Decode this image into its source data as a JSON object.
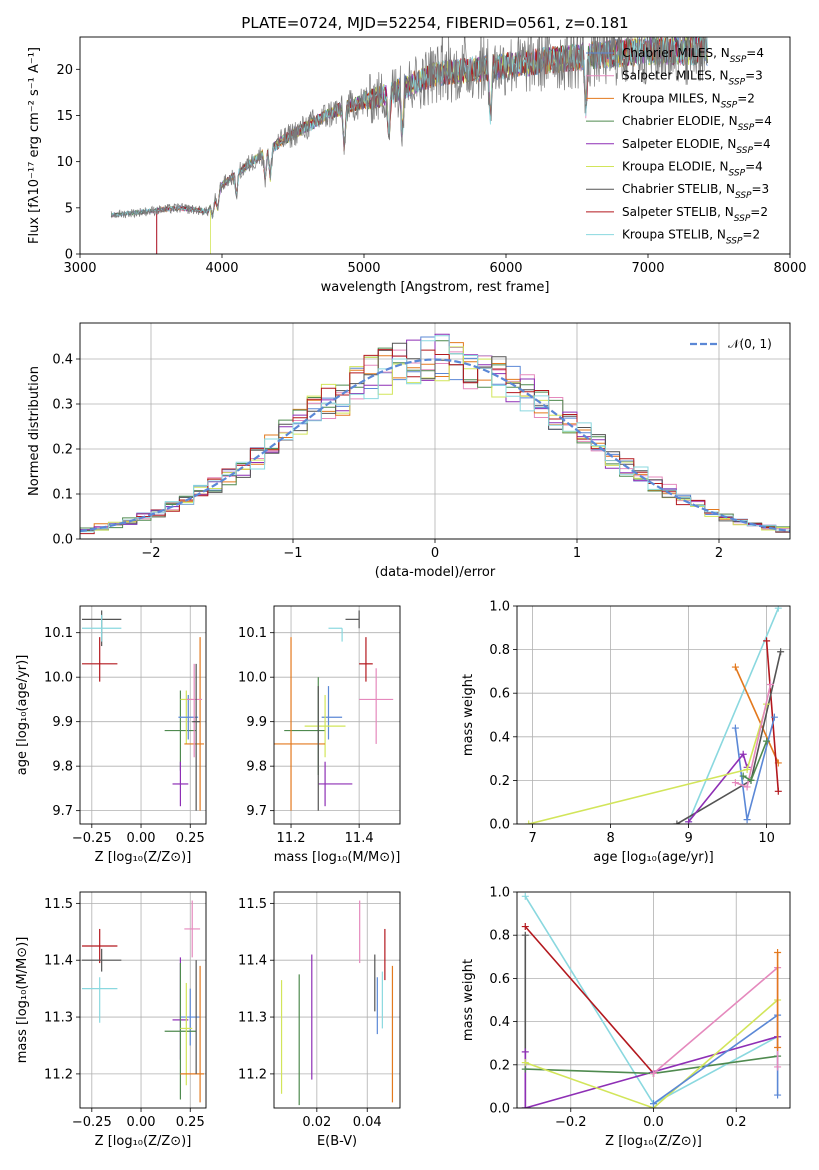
{
  "title": "PLATE=0724, MJD=52254, FIBERID=0561, z=0.181",
  "colors": {
    "Chabrier MILES": "#5b88d6",
    "Salpeter MILES": "#e589bd",
    "Kroupa MILES": "#e3791e",
    "Chabrier ELODIE": "#4f8a4f",
    "Salpeter ELODIE": "#8e2fb5",
    "Kroupa ELODIE": "#d2e55a",
    "Chabrier STELIB": "#545454",
    "Salpeter STELIB": "#b3181e",
    "Kroupa STELIB": "#8ad8df"
  },
  "legend_spectrum": [
    {
      "label": "Chabrier MILES, N",
      "sub": "SSP",
      "suffix": "=4",
      "key": "Chabrier MILES"
    },
    {
      "label": "Salpeter MILES, N",
      "sub": "SSP",
      "suffix": "=3",
      "key": "Salpeter MILES"
    },
    {
      "label": "Kroupa MILES, N",
      "sub": "SSP",
      "suffix": "=2",
      "key": "Kroupa MILES"
    },
    {
      "label": "Chabrier ELODIE, N",
      "sub": "SSP",
      "suffix": "=4",
      "key": "Chabrier ELODIE"
    },
    {
      "label": "Salpeter ELODIE, N",
      "sub": "SSP",
      "suffix": "=4",
      "key": "Salpeter ELODIE"
    },
    {
      "label": "Kroupa ELODIE, N",
      "sub": "SSP",
      "suffix": "=4",
      "key": "Kroupa ELODIE"
    },
    {
      "label": "Chabrier STELIB, N",
      "sub": "SSP",
      "suffix": "=3",
      "key": "Chabrier STELIB"
    },
    {
      "label": "Salpeter STELIB, N",
      "sub": "SSP",
      "suffix": "=2",
      "key": "Salpeter STELIB"
    },
    {
      "label": "Kroupa STELIB, N",
      "sub": "SSP",
      "suffix": "=2",
      "key": "Kroupa STELIB"
    }
  ],
  "chart_data": [
    {
      "id": "spectrum",
      "type": "line",
      "xlabel": "wavelength [Angstrom, rest frame]",
      "ylabel": "Flux [fλ10⁻¹⁷ erg cm⁻² s⁻¹ A⁻¹]",
      "xlim": [
        3000,
        8000
      ],
      "ylim": [
        0,
        23.5
      ],
      "xticks": [
        3000,
        4000,
        5000,
        6000,
        7000,
        8000
      ],
      "yticks": [
        0,
        5,
        10,
        15,
        20
      ],
      "legend_position": "right",
      "data_range_x": [
        3220,
        7420
      ],
      "continuum": [
        [
          3220,
          4.2
        ],
        [
          3700,
          5.0
        ],
        [
          3900,
          4.6
        ],
        [
          4000,
          7.5
        ],
        [
          4300,
          11.0
        ],
        [
          4500,
          13.0
        ],
        [
          4800,
          15.5
        ],
        [
          5200,
          17.5
        ],
        [
          5500,
          19.5
        ],
        [
          5800,
          20.0
        ],
        [
          6200,
          20.8
        ],
        [
          6600,
          21.5
        ],
        [
          7000,
          22.0
        ],
        [
          7420,
          22.0
        ]
      ],
      "series_start_x": {
        "Salpeter STELIB": 3540,
        "Kroupa ELODIE": 3920,
        "Kroupa MILES": 3540,
        "Salpeter ELODIE": 3540
      }
    },
    {
      "id": "residuals",
      "type": "histogram",
      "xlabel": "(data-model)/error",
      "ylabel": "Normed distribution",
      "xlim": [
        -2.5,
        2.5
      ],
      "ylim": [
        0,
        0.48
      ],
      "xticks": [
        -2,
        -1,
        0,
        1,
        2
      ],
      "yticks": [
        0.0,
        0.1,
        0.2,
        0.3,
        0.4
      ],
      "grid": true,
      "legend": [
        {
          "label": "𝒩(0, 1)",
          "style": "dashed",
          "color": "#5b88d6"
        }
      ],
      "legend_position": "top-right",
      "bins_start": -2.5,
      "bin_width": 0.1,
      "n_bins": 50
    },
    {
      "id": "age_vs_Z",
      "type": "errorbar",
      "xlabel": "Z [log₁₀(Z/Z⊙)]",
      "ylabel": "age  [log₁₀(age/yr)]",
      "xlim": [
        -0.31,
        0.33
      ],
      "ylim": [
        9.67,
        10.16
      ],
      "xticks": [
        -0.25,
        0.0,
        0.25
      ],
      "yticks": [
        9.7,
        9.8,
        9.9,
        10.0,
        10.1
      ],
      "grid": true,
      "points": [
        {
          "key": "Chabrier STELIB",
          "x": -0.2,
          "y": 10.13,
          "xerr": [
            0.1,
            0.1
          ],
          "yerr": [
            0.06,
            0.02
          ]
        },
        {
          "key": "Kroupa STELIB",
          "x": -0.2,
          "y": 10.11,
          "xerr": [
            0.1,
            0.1
          ],
          "yerr": [
            0.03,
            0.03
          ]
        },
        {
          "key": "Salpeter STELIB",
          "x": -0.21,
          "y": 10.03,
          "xerr": [
            0.09,
            0.09
          ],
          "yerr": [
            0.04,
            0.06
          ]
        },
        {
          "key": "Chabrier ELODIE",
          "x": 0.2,
          "y": 9.88,
          "xerr": [
            0.08,
            0.08
          ],
          "yerr": [
            0.09,
            0.09
          ]
        },
        {
          "key": "Salpeter ELODIE",
          "x": 0.2,
          "y": 9.76,
          "xerr": [
            0.04,
            0.04
          ],
          "yerr": [
            0.05,
            0.05
          ]
        },
        {
          "key": "Kroupa ELODIE",
          "x": 0.23,
          "y": 9.95,
          "xerr": [
            0.03,
            0.03
          ],
          "yerr": [
            0.1,
            0.02
          ]
        },
        {
          "key": "Chabrier MILES",
          "x": 0.24,
          "y": 9.91,
          "xerr": [
            0.05,
            0.05
          ],
          "yerr": [
            0.05,
            0.05
          ]
        },
        {
          "key": "Kroupa MILES",
          "x": 0.3,
          "y": 9.85,
          "xerr": [
            0.08,
            0.02
          ],
          "yerr": [
            0.15,
            0.24
          ]
        },
        {
          "key": "Salpeter MILES",
          "x": 0.27,
          "y": 9.95,
          "xerr": [
            0.04,
            0.04
          ],
          "yerr": [
            0.13,
            0.08
          ]
        },
        {
          "key": "Chabrier STELIB",
          "x": 0.28,
          "y": 9.9,
          "xerr": [
            0.02,
            0.02
          ],
          "yerr": [
            0.2,
            0.13
          ]
        }
      ]
    },
    {
      "id": "age_vs_mass",
      "type": "errorbar",
      "xlabel": "mass [log₁₀(M/M⊙)]",
      "xlim": [
        11.15,
        11.52
      ],
      "ylim": [
        9.67,
        10.16
      ],
      "xticks": [
        11.2,
        11.4
      ],
      "yticks": [
        9.7,
        9.8,
        9.9,
        10.0,
        10.1
      ],
      "grid": true,
      "points": [
        {
          "key": "Chabrier STELIB",
          "x": 11.4,
          "y": 10.13,
          "xerr": [
            0.04,
            0.0
          ],
          "yerr": [
            0.02,
            0.02
          ]
        },
        {
          "key": "Kroupa STELIB",
          "x": 11.35,
          "y": 10.11,
          "xerr": [
            0.04,
            0.0
          ],
          "yerr": [
            0.03,
            0.0
          ]
        },
        {
          "key": "Salpeter STELIB",
          "x": 11.42,
          "y": 10.03,
          "xerr": [
            0.02,
            0.02
          ],
          "yerr": [
            0.04,
            0.06
          ]
        },
        {
          "key": "Chabrier MILES",
          "x": 11.31,
          "y": 9.91,
          "xerr": [
            0.02,
            0.04
          ],
          "yerr": [
            0.05,
            0.07
          ]
        },
        {
          "key": "Chabrier ELODIE",
          "x": 11.28,
          "y": 9.88,
          "xerr": [
            0.1,
            0.02
          ],
          "yerr": [
            0.1,
            0.12
          ]
        },
        {
          "key": "Kroupa ELODIE",
          "x": 11.3,
          "y": 9.89,
          "xerr": [
            0.06,
            0.06
          ],
          "yerr": [
            0.07,
            0.07
          ]
        },
        {
          "key": "Kroupa MILES",
          "x": 11.2,
          "y": 9.85,
          "xerr": [
            0.05,
            0.1
          ],
          "yerr": [
            0.15,
            0.24
          ]
        },
        {
          "key": "Salpeter ELODIE",
          "x": 11.3,
          "y": 9.76,
          "xerr": [
            0.02,
            0.08
          ],
          "yerr": [
            0.05,
            0.05
          ]
        },
        {
          "key": "Salpeter MILES",
          "x": 11.45,
          "y": 9.95,
          "xerr": [
            0.05,
            0.05
          ],
          "yerr": [
            0.1,
            0.07
          ]
        },
        {
          "key": "Chabrier STELIB",
          "x": 11.28,
          "y": 9.9,
          "xerr": [
            0.0,
            0.0
          ],
          "yerr": [
            0.2,
            0.08
          ]
        }
      ]
    },
    {
      "id": "weight_vs_age",
      "type": "line",
      "xlabel": "age  [log₁₀(age/yr)]",
      "ylabel": "mass weight",
      "xlim": [
        6.8,
        10.3
      ],
      "ylim": [
        0,
        1
      ],
      "xticks": [
        7,
        8,
        9,
        10
      ],
      "yticks": [
        0.0,
        0.2,
        0.4,
        0.6,
        0.8,
        1.0
      ],
      "grid": true,
      "series": [
        {
          "key": "Kroupa STELIB",
          "x": [
            9.0,
            10.15
          ],
          "y": [
            0.01,
            0.99
          ]
        },
        {
          "key": "Kroupa MILES",
          "x": [
            9.6,
            10.15
          ],
          "y": [
            0.72,
            0.28
          ]
        },
        {
          "key": "Salpeter STELIB",
          "x": [
            10.0,
            10.15
          ],
          "y": [
            0.84,
            0.15
          ]
        },
        {
          "key": "Chabrier STELIB",
          "x": [
            8.85,
            9.8,
            10.18
          ],
          "y": [
            0.0,
            0.2,
            0.79
          ]
        },
        {
          "key": "Chabrier MILES",
          "x": [
            9.6,
            9.75,
            10.1
          ],
          "y": [
            0.44,
            0.02,
            0.49
          ]
        },
        {
          "key": "Salpeter ELODIE",
          "x": [
            9.0,
            9.7,
            9.75
          ],
          "y": [
            0.01,
            0.32,
            0.26
          ]
        },
        {
          "key": "Kroupa ELODIE",
          "x": [
            6.95,
            9.75,
            10.0
          ],
          "y": [
            0.0,
            0.25,
            0.55
          ]
        },
        {
          "key": "Salpeter MILES",
          "x": [
            9.6,
            9.75,
            10.05
          ],
          "y": [
            0.19,
            0.17,
            0.64
          ]
        },
        {
          "key": "Chabrier ELODIE",
          "x": [
            9.7,
            9.8,
            10.0
          ],
          "y": [
            0.22,
            0.2,
            0.38
          ]
        }
      ]
    },
    {
      "id": "mass_vs_Z",
      "type": "errorbar",
      "xlabel": "Z [log₁₀(Z/Z⊙)]",
      "ylabel": "mass [log₁₀(M/M⊙)]",
      "xlim": [
        -0.31,
        0.33
      ],
      "ylim": [
        11.14,
        11.52
      ],
      "xticks": [
        -0.25,
        0.0,
        0.25
      ],
      "yticks": [
        11.2,
        11.3,
        11.4,
        11.5
      ],
      "grid": true,
      "points": [
        {
          "key": "Salpeter STELIB",
          "x": -0.21,
          "y": 11.425,
          "xerr": [
            0.09,
            0.09
          ],
          "yerr": [
            0.03,
            0.03
          ]
        },
        {
          "key": "Chabrier STELIB",
          "x": -0.2,
          "y": 11.4,
          "xerr": [
            0.1,
            0.1
          ],
          "yerr": [
            0.02,
            0.02
          ]
        },
        {
          "key": "Kroupa STELIB",
          "x": -0.21,
          "y": 11.35,
          "xerr": [
            0.09,
            0.09
          ],
          "yerr": [
            0.06,
            0.02
          ]
        },
        {
          "key": "Salpeter MILES",
          "x": 0.26,
          "y": 11.455,
          "xerr": [
            0.04,
            0.04
          ],
          "yerr": [
            0.05,
            0.05
          ]
        },
        {
          "key": "Chabrier MILES",
          "x": 0.25,
          "y": 11.3,
          "xerr": [
            0.05,
            0.05
          ],
          "yerr": [
            0.05,
            0.05
          ]
        },
        {
          "key": "Salpeter ELODIE",
          "x": 0.2,
          "y": 11.295,
          "xerr": [
            0.04,
            0.04
          ],
          "yerr": [
            0.07,
            0.11
          ]
        },
        {
          "key": "Chabrier ELODIE",
          "x": 0.2,
          "y": 11.275,
          "xerr": [
            0.08,
            0.08
          ],
          "yerr": [
            0.12,
            0.12
          ]
        },
        {
          "key": "Kroupa ELODIE",
          "x": 0.23,
          "y": 11.28,
          "xerr": [
            0.03,
            0.03
          ],
          "yerr": [
            0.1,
            0.08
          ]
        },
        {
          "key": "Kroupa MILES",
          "x": 0.3,
          "y": 11.2,
          "xerr": [
            0.1,
            0.02
          ],
          "yerr": [
            0.05,
            0.19
          ]
        },
        {
          "key": "Chabrier STELIB",
          "x": 0.28,
          "y": 11.3,
          "xerr": [
            0.0,
            0.0
          ],
          "yerr": [
            0.1,
            0.1
          ]
        }
      ]
    },
    {
      "id": "mass_vs_EBV",
      "type": "errorbar",
      "xlabel": "E(B-V)",
      "xlim": [
        0.003,
        0.053
      ],
      "ylim": [
        11.14,
        11.52
      ],
      "xticks": [
        0.02,
        0.04
      ],
      "yticks": [
        11.2,
        11.3,
        11.4,
        11.5
      ],
      "grid": true,
      "points": [
        {
          "key": "Kroupa ELODIE",
          "x": 0.006,
          "y": 11.265,
          "xerr": [
            0,
            0
          ],
          "yerr": [
            0.1,
            0.1
          ]
        },
        {
          "key": "Chabrier ELODIE",
          "x": 0.013,
          "y": 11.26,
          "xerr": [
            0,
            0
          ],
          "yerr": [
            0.115,
            0.115
          ]
        },
        {
          "key": "Salpeter ELODIE",
          "x": 0.018,
          "y": 11.3,
          "xerr": [
            0,
            0
          ],
          "yerr": [
            0.11,
            0.11
          ]
        },
        {
          "key": "Salpeter MILES",
          "x": 0.037,
          "y": 11.45,
          "xerr": [
            0,
            0
          ],
          "yerr": [
            0.055,
            0.055
          ]
        },
        {
          "key": "Chabrier STELIB",
          "x": 0.043,
          "y": 11.36,
          "xerr": [
            0,
            0
          ],
          "yerr": [
            0.05,
            0.05
          ]
        },
        {
          "key": "Chabrier MILES",
          "x": 0.044,
          "y": 11.32,
          "xerr": [
            0,
            0
          ],
          "yerr": [
            0.05,
            0.05
          ]
        },
        {
          "key": "Kroupa STELIB",
          "x": 0.046,
          "y": 11.33,
          "xerr": [
            0,
            0
          ],
          "yerr": [
            0.05,
            0.05
          ]
        },
        {
          "key": "Salpeter STELIB",
          "x": 0.047,
          "y": 11.41,
          "xerr": [
            0,
            0
          ],
          "yerr": [
            0.045,
            0.045
          ]
        },
        {
          "key": "Kroupa MILES",
          "x": 0.05,
          "y": 11.27,
          "xerr": [
            0,
            0
          ],
          "yerr": [
            0.12,
            0.12
          ]
        }
      ]
    },
    {
      "id": "weight_vs_Z",
      "type": "line",
      "xlabel": "Z [log₁₀(Z/Z⊙)]",
      "ylabel": "mass weight",
      "xlim": [
        -0.33,
        0.33
      ],
      "ylim": [
        0,
        1
      ],
      "xticks": [
        -0.2,
        0.0,
        0.2
      ],
      "yticks": [
        0.0,
        0.2,
        0.4,
        0.6,
        0.8,
        1.0
      ],
      "grid": true,
      "series": [
        {
          "key": "Kroupa STELIB",
          "x": [
            -0.31,
            0.0,
            0.3
          ],
          "y": [
            0.98,
            0.02,
            0.33
          ]
        },
        {
          "key": "Salpeter STELIB",
          "x": [
            -0.31,
            0.0
          ],
          "y": [
            0.84,
            0.16
          ]
        },
        {
          "key": "Chabrier STELIB",
          "x": [
            -0.31,
            -0.31
          ],
          "y": [
            0.8,
            0.0
          ]
        },
        {
          "key": "Salpeter ELODIE",
          "x": [
            -0.31,
            -0.31,
            0.3
          ],
          "y": [
            0.26,
            0.0,
            0.33
          ]
        },
        {
          "key": "Chabrier ELODIE",
          "x": [
            -0.31,
            0.0,
            0.3
          ],
          "y": [
            0.18,
            0.16,
            0.24
          ]
        },
        {
          "key": "Kroupa ELODIE",
          "x": [
            -0.31,
            0.0,
            0.3
          ],
          "y": [
            0.21,
            0.0,
            0.5
          ]
        },
        {
          "key": "Chabrier MILES",
          "x": [
            0.0,
            0.3,
            0.3
          ],
          "y": [
            0.02,
            0.43,
            0.06
          ]
        },
        {
          "key": "Salpeter MILES",
          "x": [
            0.0,
            0.3,
            0.3
          ],
          "y": [
            0.16,
            0.65,
            0.19
          ]
        },
        {
          "key": "Kroupa MILES",
          "x": [
            0.3,
            0.3
          ],
          "y": [
            0.72,
            0.28
          ]
        }
      ]
    }
  ]
}
